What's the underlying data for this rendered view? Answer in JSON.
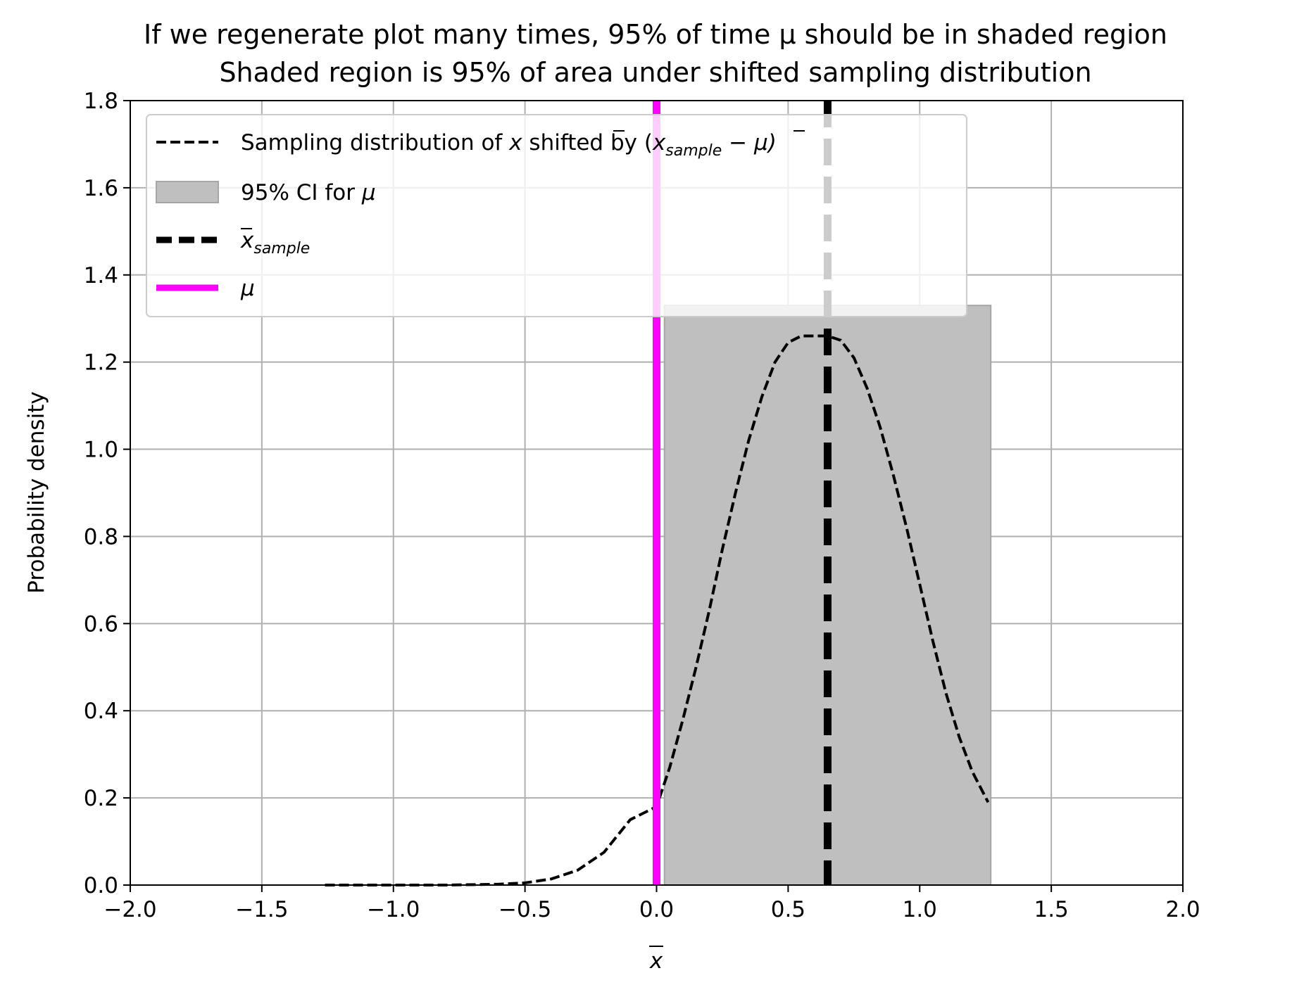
{
  "title_line1": "If we regenerate plot many times, 95% of time μ should be in shaded region",
  "title_line2": "Shaded region is 95% of area under shifted sampling distribution",
  "colors": {
    "curve": "#000000",
    "ci_fill": "#bfbfbf",
    "ci_edge": "#a6a6a6",
    "sample_mean_line": "#000000",
    "mu_line": "#ff00ff",
    "grid": "#b0b0b0",
    "legend_edge": "#cccccc"
  },
  "chart_data": {
    "type": "line",
    "title": "If we regenerate plot many times, 95% of time μ should be in shaded region\nShaded region is 95% of area under shifted sampling distribution",
    "xlabel": "x̄",
    "ylabel": "Probability density",
    "xlim": [
      -2.0,
      2.0
    ],
    "ylim": [
      0.0,
      1.8
    ],
    "xticks": [
      -2.0,
      -1.5,
      -1.0,
      -0.5,
      0.0,
      0.5,
      1.0,
      1.5,
      2.0
    ],
    "xtick_labels": [
      "−2.0",
      "−1.5",
      "−1.0",
      "−0.5",
      "0.0",
      "0.5",
      "1.0",
      "1.5",
      "2.0"
    ],
    "yticks": [
      0.0,
      0.2,
      0.4,
      0.6,
      0.8,
      1.0,
      1.2,
      1.4,
      1.6,
      1.8
    ],
    "ytick_labels": [
      "0.0",
      "0.2",
      "0.4",
      "0.6",
      "0.8",
      "1.0",
      "1.2",
      "1.4",
      "1.6",
      "1.8"
    ],
    "grid": true,
    "legend_position": "upper-left",
    "series": [
      {
        "name": "Sampling distribution of x̄ shifted by (x̄sample − μ)",
        "kind": "curve",
        "style": "dashed",
        "x": [
          -1.26,
          -1.0,
          -0.8,
          -0.6,
          -0.5,
          -0.4,
          -0.3,
          -0.2,
          -0.1,
          0.0,
          0.05,
          0.1,
          0.15,
          0.2,
          0.25,
          0.3,
          0.35,
          0.4,
          0.45,
          0.5,
          0.55,
          0.6,
          0.65,
          0.7,
          0.75,
          0.8,
          0.85,
          0.9,
          0.95,
          1.0,
          1.05,
          1.1,
          1.15,
          1.2,
          1.26
        ],
        "y": [
          0.0,
          0.0,
          0.0,
          0.002,
          0.005,
          0.014,
          0.034,
          0.075,
          0.15,
          0.18,
          0.27,
          0.38,
          0.5,
          0.63,
          0.77,
          0.9,
          1.02,
          1.12,
          1.2,
          1.245,
          1.26,
          1.26,
          1.26,
          1.25,
          1.21,
          1.14,
          1.05,
          0.94,
          0.82,
          0.69,
          0.56,
          0.44,
          0.34,
          0.26,
          0.19
        ]
      },
      {
        "name": "95% CI for μ",
        "kind": "shaded-region",
        "x_range": [
          0.03,
          1.27
        ],
        "height": 1.33
      },
      {
        "name": "x̄sample",
        "kind": "vertical-line",
        "style": "dashed-thick",
        "x": 0.65
      },
      {
        "name": "μ",
        "kind": "vertical-line",
        "style": "solid",
        "x": 0.0
      }
    ]
  },
  "legend": {
    "items": [
      {
        "prefix": "Sampling distribution of ",
        "var": "x",
        "middle": " shifted by (",
        "var2": "x",
        "sub": "sample",
        "suffix": " − μ)"
      },
      {
        "prefix": "95% CI for ",
        "mu": "μ"
      },
      {
        "var": "x",
        "sub": "sample"
      },
      {
        "mu": "μ"
      }
    ]
  },
  "xlabel_var": "x"
}
